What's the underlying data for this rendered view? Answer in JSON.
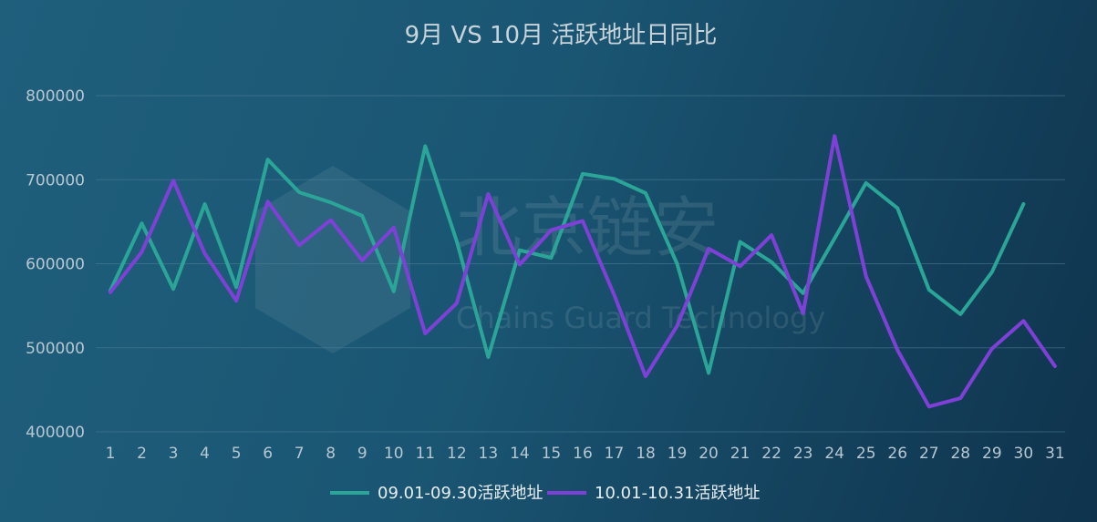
{
  "chart_data": {
    "type": "line",
    "title": "9月 VS 10月 活跃地址日同比",
    "xlabel": "",
    "ylabel": "",
    "ylim": [
      400000,
      800000
    ],
    "y_ticks": [
      400000,
      500000,
      600000,
      700000,
      800000
    ],
    "grid": true,
    "legend_position": "bottom-center",
    "x": [
      1,
      2,
      3,
      4,
      5,
      6,
      7,
      8,
      9,
      10,
      11,
      12,
      13,
      14,
      15,
      16,
      17,
      18,
      19,
      20,
      21,
      22,
      23,
      24,
      25,
      26,
      27,
      28,
      29,
      30,
      31
    ],
    "series": [
      {
        "name": "09.01-09.30活跃地址",
        "color": "#2aa597",
        "values": [
          568000,
          648000,
          570000,
          671000,
          572000,
          724000,
          685000,
          673000,
          657000,
          567000,
          740000,
          627000,
          489000,
          616000,
          607000,
          707000,
          701000,
          684000,
          600000,
          470000,
          626000,
          602000,
          565000,
          630000,
          696000,
          666000,
          569000,
          540000,
          590000,
          671000,
          null
        ]
      },
      {
        "name": "10.01-10.31活跃地址",
        "color": "#7f40d8",
        "values": [
          566000,
          614000,
          699000,
          612000,
          556000,
          674000,
          622000,
          652000,
          604000,
          643000,
          517000,
          553000,
          683000,
          599000,
          640000,
          651000,
          563000,
          466000,
          526000,
          618000,
          597000,
          634000,
          541000,
          752000,
          585000,
          497000,
          430000,
          440000,
          499000,
          532000,
          478000
        ]
      }
    ]
  },
  "watermark": {
    "text_cn": "北京链安",
    "text_en": "Chains Guard Technology"
  }
}
